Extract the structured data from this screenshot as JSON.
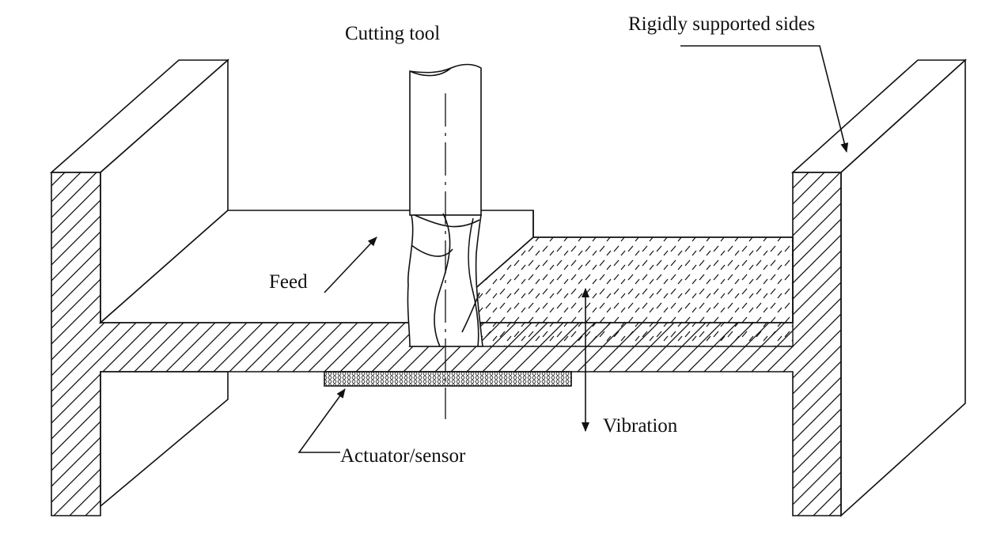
{
  "labels": {
    "cutting_tool": "Cutting tool",
    "rigid_sides": "Rigidly supported sides",
    "feed": "Feed",
    "vibration": "Vibration",
    "actuator": "Actuator/sensor"
  },
  "colors": {
    "stroke": "#111111",
    "background": "#ffffff"
  }
}
